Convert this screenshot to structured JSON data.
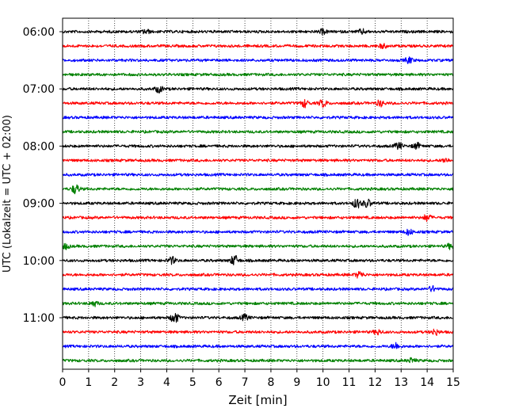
{
  "chart_data": {
    "type": "line",
    "title": "",
    "xlabel": "Zeit  [min]",
    "ylabel": "UTC (Lokalzeit = UTC + 02:00)",
    "xlim": [
      0,
      15
    ],
    "x_ticks": [
      "0",
      "1",
      "2",
      "3",
      "4",
      "5",
      "6",
      "7",
      "8",
      "9",
      "10",
      "11",
      "12",
      "13",
      "14",
      "15"
    ],
    "y_ticks": [
      {
        "label": "06:00",
        "trace_index": 0
      },
      {
        "label": "07:00",
        "trace_index": 4
      },
      {
        "label": "08:00",
        "trace_index": 8
      },
      {
        "label": "09:00",
        "trace_index": 12
      },
      {
        "label": "10:00",
        "trace_index": 16
      },
      {
        "label": "11:00",
        "trace_index": 20
      }
    ],
    "trace_interval_minutes": 15,
    "trace_count": 24,
    "trace_colors": [
      "#000000",
      "#ff0000",
      "#0000ff",
      "#008000"
    ],
    "grid": {
      "vertical_dotted": true
    },
    "series": [
      {
        "start": "06:00",
        "color": "#000000",
        "events": [
          [
            3.2,
            1.2
          ],
          [
            10,
            1.2
          ],
          [
            11.5,
            1.2
          ]
        ]
      },
      {
        "start": "06:15",
        "color": "#ff0000",
        "events": [
          [
            12.3,
            1.1
          ]
        ]
      },
      {
        "start": "06:30",
        "color": "#0000ff",
        "events": [
          [
            13.3,
            1.6
          ]
        ]
      },
      {
        "start": "06:45",
        "color": "#008000",
        "events": []
      },
      {
        "start": "07:00",
        "color": "#000000",
        "events": [
          [
            3.7,
            1.8
          ]
        ]
      },
      {
        "start": "07:15",
        "color": "#ff0000",
        "events": [
          [
            9.3,
            2.0
          ],
          [
            10.0,
            2.0
          ],
          [
            12.2,
            1.6
          ]
        ]
      },
      {
        "start": "07:30",
        "color": "#0000ff",
        "events": []
      },
      {
        "start": "07:45",
        "color": "#008000",
        "events": []
      },
      {
        "start": "08:00",
        "color": "#000000",
        "events": [
          [
            12.9,
            1.8
          ],
          [
            13.6,
            1.6
          ]
        ]
      },
      {
        "start": "08:15",
        "color": "#ff0000",
        "events": [
          [
            14.7,
            1.2
          ]
        ]
      },
      {
        "start": "08:30",
        "color": "#0000ff",
        "events": []
      },
      {
        "start": "08:45",
        "color": "#008000",
        "events": [
          [
            0.5,
            2.5
          ]
        ]
      },
      {
        "start": "09:00",
        "color": "#000000",
        "events": [
          [
            11.3,
            2.5
          ],
          [
            11.7,
            2.2
          ]
        ]
      },
      {
        "start": "09:15",
        "color": "#ff0000",
        "events": [
          [
            14.0,
            1.8
          ]
        ]
      },
      {
        "start": "09:30",
        "color": "#0000ff",
        "events": [
          [
            13.3,
            1.6
          ]
        ]
      },
      {
        "start": "09:45",
        "color": "#008000",
        "events": [
          [
            0.1,
            1.5
          ],
          [
            14.9,
            1.4
          ]
        ]
      },
      {
        "start": "10:00",
        "color": "#000000",
        "events": [
          [
            4.2,
            1.8
          ],
          [
            6.6,
            2.8
          ]
        ]
      },
      {
        "start": "10:15",
        "color": "#ff0000",
        "events": [
          [
            11.4,
            1.8
          ]
        ]
      },
      {
        "start": "10:30",
        "color": "#0000ff",
        "events": [
          [
            14.2,
            1.4
          ]
        ]
      },
      {
        "start": "10:45",
        "color": "#008000",
        "events": [
          [
            1.2,
            1.4
          ]
        ]
      },
      {
        "start": "11:00",
        "color": "#000000",
        "events": [
          [
            4.3,
            3.0
          ],
          [
            7.0,
            1.6
          ]
        ]
      },
      {
        "start": "11:15",
        "color": "#ff0000",
        "events": [
          [
            12.1,
            1.3
          ],
          [
            14.3,
            1.6
          ]
        ]
      },
      {
        "start": "11:30",
        "color": "#0000ff",
        "events": [
          [
            12.8,
            1.8
          ]
        ]
      },
      {
        "start": "11:45",
        "color": "#008000",
        "events": [
          [
            13.4,
            1.2
          ]
        ]
      }
    ]
  }
}
